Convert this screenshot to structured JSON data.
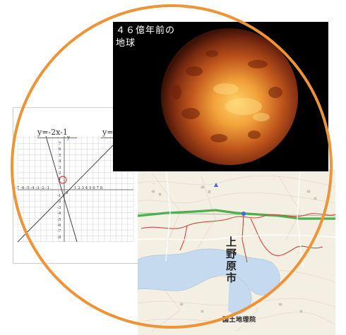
{
  "planet_panel": {
    "caption_line1": "４６億年前の",
    "caption_line2": "地球"
  },
  "graph_panel": {
    "equation_left": "y=-2x-1",
    "equation_right": "y=",
    "y_axis_label": "y",
    "x_ticks_left": "-7 -6 -5 -4 -3 -2 -1",
    "x_ticks_right": "1 2 3 4 5 6 7 8",
    "origin_label": "0",
    "y_ticks": [
      "7",
      "6",
      "5",
      "4",
      "3",
      "2",
      "1",
      "-1",
      "-2",
      "-3",
      "-4",
      "-5",
      "-6",
      "-7",
      "-8"
    ]
  },
  "map_panel": {
    "city_label_chars": [
      "上",
      "野",
      "原",
      "市"
    ],
    "credit": "国土地理院"
  },
  "colors": {
    "ring": "#ee9438",
    "planet_bg": "#000000",
    "river": "#c5d9ef",
    "highway": "#4caf50",
    "route": "#d0463c"
  }
}
